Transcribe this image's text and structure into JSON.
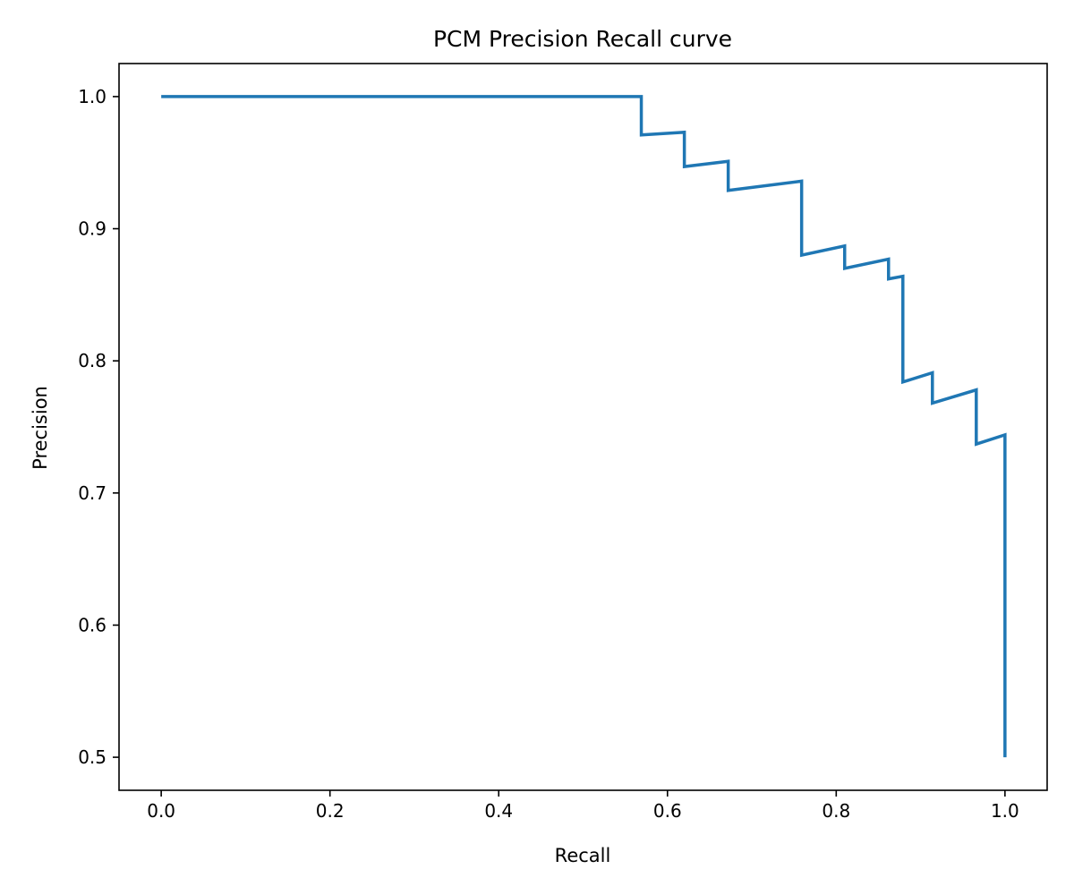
{
  "chart_data": {
    "type": "line",
    "title": "PCM Precision Recall curve",
    "xlabel": "Recall",
    "ylabel": "Precision",
    "xlim": [
      -0.05,
      1.05
    ],
    "ylim": [
      0.475,
      1.025
    ],
    "xticks": [
      0.0,
      0.2,
      0.4,
      0.6,
      0.8,
      1.0
    ],
    "xtick_labels": [
      "0.0",
      "0.2",
      "0.4",
      "0.6",
      "0.8",
      "1.0"
    ],
    "yticks": [
      0.5,
      0.6,
      0.7,
      0.8,
      0.9,
      1.0
    ],
    "ytick_labels": [
      "0.5",
      "0.6",
      "0.7",
      "0.8",
      "0.9",
      "1.0"
    ],
    "grid": false,
    "legend": "none",
    "series": [
      {
        "color": "#1f77b4",
        "x": [
          0.0,
          0.569,
          0.569,
          0.62,
          0.62,
          0.672,
          0.672,
          0.759,
          0.759,
          0.81,
          0.81,
          0.862,
          0.862,
          0.879,
          0.879,
          0.914,
          0.914,
          0.966,
          0.966,
          1.0,
          1.0
        ],
        "y": [
          1.0,
          1.0,
          0.971,
          0.973,
          0.947,
          0.951,
          0.929,
          0.936,
          0.88,
          0.887,
          0.87,
          0.877,
          0.862,
          0.864,
          0.784,
          0.791,
          0.768,
          0.778,
          0.737,
          0.744,
          0.5
        ]
      }
    ]
  }
}
